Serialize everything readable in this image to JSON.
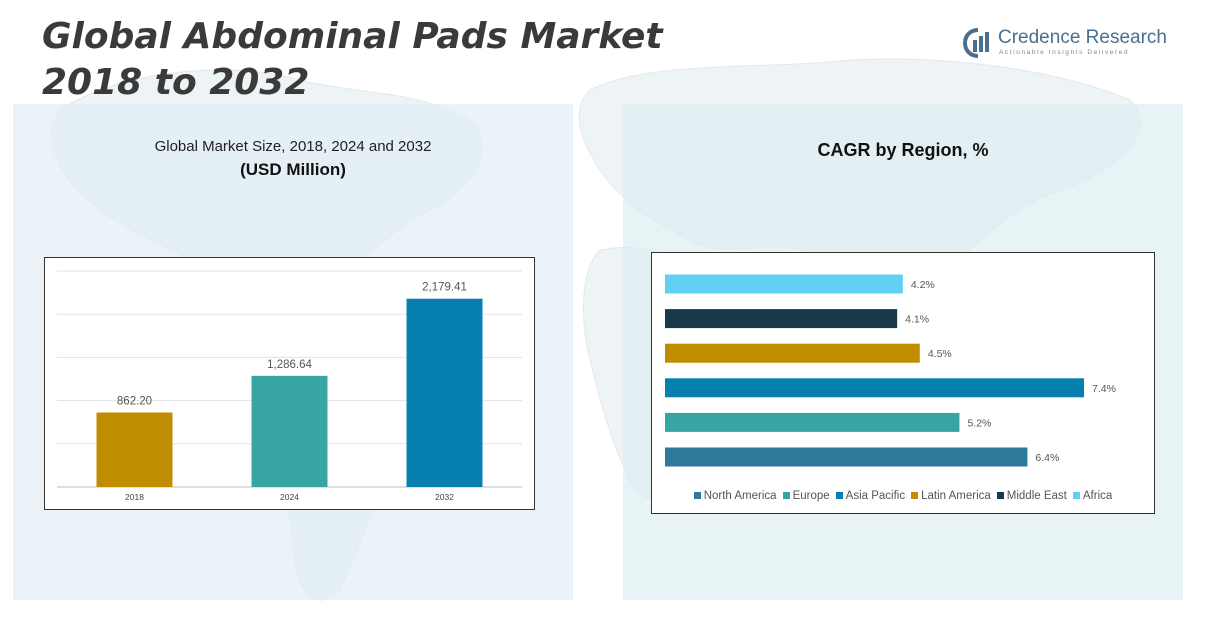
{
  "header": {
    "title_line1": "Global Abdominal Pads Market",
    "title_line2": "2018 to 2032"
  },
  "logo": {
    "name": "Credence Research",
    "tagline": "Actionable Insights Delivered"
  },
  "colors": {
    "north_america": "#2e7a9c",
    "europe": "#36a5a3",
    "asia_pacific": "#0780b0",
    "latin_america": "#c08c00",
    "middle_east": "#193a4a",
    "africa": "#62cff4"
  },
  "chart_data": [
    {
      "type": "bar",
      "title": "Global Market Size, 2018, 2024 and 2032",
      "unit": "(USD Million)",
      "categories": [
        "2018",
        "2024",
        "2032"
      ],
      "values": [
        862.2,
        1286.64,
        2179.41
      ],
      "value_labels": [
        "862.20",
        "1,286.64",
        "2,179.41"
      ],
      "bar_colors": [
        "#c08c00",
        "#36a5a3",
        "#0780b0"
      ],
      "ylim": [
        0,
        2500
      ],
      "grid": true,
      "legend": "none"
    },
    {
      "type": "bar",
      "orientation": "horizontal",
      "title": "CAGR by Region, %",
      "categories": [
        "Africa",
        "Middle East",
        "Latin America",
        "Asia Pacific",
        "Europe",
        "North America"
      ],
      "values": [
        4.2,
        4.1,
        4.5,
        7.4,
        5.2,
        6.4
      ],
      "value_labels": [
        "4.2%",
        "4.1%",
        "4.5%",
        "7.4%",
        "5.2%",
        "6.4%"
      ],
      "bar_colors": [
        "#62cff4",
        "#193a4a",
        "#c08c00",
        "#0780b0",
        "#36a5a3",
        "#2e7a9c"
      ],
      "xlim": [
        0,
        8
      ],
      "legend": "bottom",
      "legend_entries": [
        {
          "name": "North America",
          "color": "#2e7a9c"
        },
        {
          "name": "Europe",
          "color": "#36a5a3"
        },
        {
          "name": "Asia Pacific",
          "color": "#0780b0"
        },
        {
          "name": "Latin America",
          "color": "#c08c00"
        },
        {
          "name": "Middle East",
          "color": "#193a4a"
        },
        {
          "name": "Africa",
          "color": "#62cff4"
        }
      ]
    }
  ]
}
